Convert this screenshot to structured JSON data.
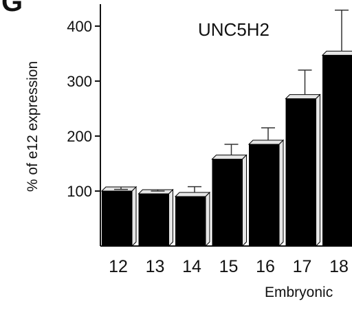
{
  "panel_letter": "G",
  "chart_data": {
    "type": "bar",
    "title": "UNC5H2",
    "xlabel": "Embryonic",
    "ylabel": "% of e12 expression",
    "categories": [
      "12",
      "13",
      "14",
      "15",
      "16",
      "17",
      "18"
    ],
    "values": [
      100,
      95,
      90,
      158,
      185,
      268,
      347
    ],
    "errors": [
      3,
      5,
      18,
      27,
      30,
      52,
      82
    ],
    "yticks": [
      100,
      200,
      300,
      400
    ],
    "ylim": [
      0,
      440
    ],
    "grid": false,
    "colors": {
      "bar": "#000000",
      "bar_3d_face": "#e6e6e6",
      "axis": "#111111"
    }
  }
}
